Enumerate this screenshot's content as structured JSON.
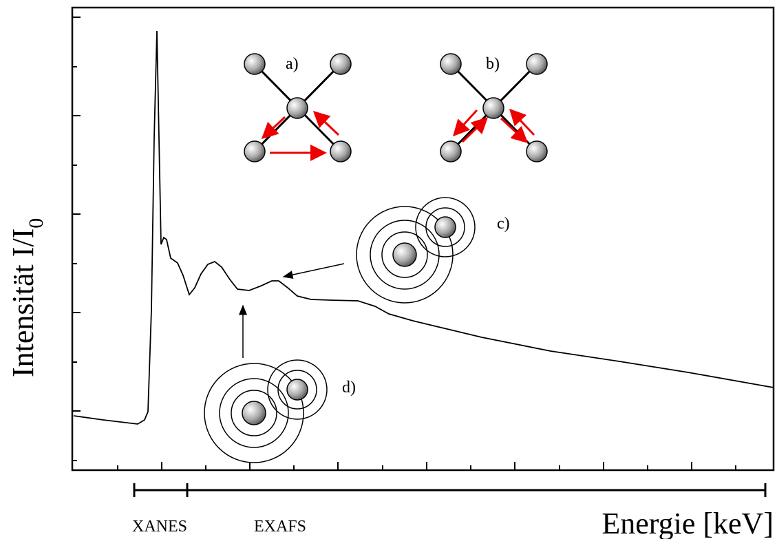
{
  "diagram": {
    "y_label": "Intensität I/I",
    "y_label_subscript": "0",
    "x_label": "Energie [keV]",
    "regions": [
      "XANES",
      "EXAFS"
    ],
    "panels": [
      "a)",
      "b)",
      "c)",
      "d)"
    ]
  }
}
